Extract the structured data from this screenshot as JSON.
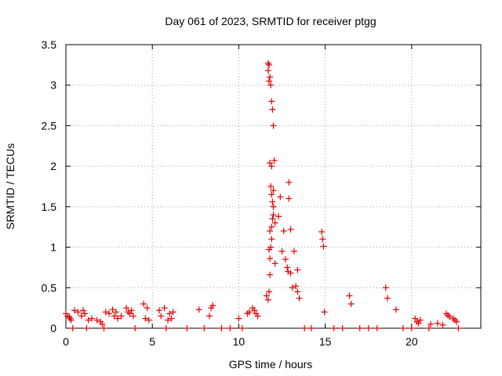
{
  "chart_data": {
    "type": "scatter",
    "title": "Day 061 of 2023, SRMTID for receiver ptgg",
    "xlabel": "GPS time / hours",
    "ylabel": "SRMTID / TECUs",
    "xlim": [
      0,
      24
    ],
    "ylim": [
      0,
      3.5
    ],
    "xticks": [
      0,
      5,
      10,
      15,
      20
    ],
    "xtick_labels": [
      "0",
      "5",
      "10",
      "15",
      "20"
    ],
    "yticks": [
      0,
      0.5,
      1,
      1.5,
      2,
      2.5,
      3,
      3.5
    ],
    "ytick_labels": [
      "0",
      "0.5",
      "1",
      "1.5",
      "2",
      "2.5",
      "3",
      "3.5"
    ],
    "grid": true,
    "marker": "plus",
    "color": "#e00000",
    "series": [
      {
        "name": "SRMTID",
        "x": [
          0.0,
          0.1,
          0.2,
          0.25,
          0.3,
          0.5,
          0.7,
          0.9,
          1.0,
          1.1,
          1.3,
          1.5,
          1.8,
          2.0,
          2.1,
          2.3,
          2.5,
          2.7,
          2.8,
          2.9,
          3.0,
          3.2,
          3.5,
          3.6,
          3.7,
          3.8,
          3.9,
          4.5,
          4.6,
          4.7,
          4.8,
          5.4,
          5.5,
          5.7,
          5.9,
          6.0,
          6.1,
          6.2,
          7.7,
          8.3,
          8.4,
          8.5,
          10.0,
          10.5,
          10.6,
          10.8,
          10.9,
          11.0,
          11.1,
          11.6,
          11.7,
          11.75,
          11.8,
          11.8,
          11.85,
          11.9,
          11.9,
          11.95,
          12.0,
          12.0,
          12.05,
          12.0,
          11.95,
          11.9,
          11.85,
          11.8,
          11.75,
          11.7,
          11.7,
          11.75,
          11.8,
          11.85,
          11.9,
          11.95,
          12.0,
          12.1,
          12.3,
          12.4,
          12.5,
          12.6,
          12.7,
          12.8,
          12.85,
          12.9,
          12.9,
          13.0,
          13.0,
          13.1,
          13.2,
          13.3,
          13.4,
          13.4,
          13.5,
          14.8,
          14.85,
          14.9,
          14.95,
          16.4,
          16.5,
          18.5,
          18.6,
          19.1,
          20.2,
          20.3,
          20.4,
          20.5,
          21.1,
          21.5,
          21.8,
          22.0,
          22.1,
          22.2,
          22.4,
          22.5,
          22.6,
          11.9,
          12.0,
          11.8,
          11.75,
          12.1,
          0.4,
          1.2,
          2.2,
          4.0,
          5.8,
          7.0,
          8.0,
          9.0,
          9.5,
          10.2,
          13.8,
          14.2,
          15.5,
          16.0,
          17.0,
          17.5,
          18.0,
          19.5,
          20.0,
          21.0,
          22.7
        ],
        "y": [
          0.18,
          0.15,
          0.14,
          0.12,
          0.1,
          0.22,
          0.2,
          0.15,
          0.22,
          0.18,
          0.1,
          0.12,
          0.1,
          0.08,
          0.05,
          0.2,
          0.18,
          0.23,
          0.15,
          0.2,
          0.12,
          0.15,
          0.25,
          0.2,
          0.18,
          0.22,
          0.15,
          0.3,
          0.12,
          0.25,
          0.1,
          0.22,
          0.15,
          0.25,
          0.1,
          0.18,
          0.12,
          0.2,
          0.23,
          0.15,
          0.25,
          0.28,
          0.12,
          0.18,
          0.2,
          0.25,
          0.22,
          0.18,
          0.15,
          0.4,
          0.35,
          0.45,
          0.66,
          0.86,
          1.0,
          1.1,
          1.25,
          1.35,
          1.5,
          1.7,
          2.07,
          2.5,
          2.7,
          2.8,
          3.0,
          3.1,
          3.25,
          3.27,
          3.18,
          3.05,
          2.04,
          1.75,
          1.65,
          1.56,
          1.4,
          1.3,
          1.38,
          1.62,
          0.95,
          1.2,
          0.85,
          0.75,
          0.7,
          1.8,
          1.6,
          1.22,
          0.68,
          0.5,
          0.95,
          0.52,
          0.72,
          0.45,
          0.37,
          1.19,
          1.1,
          1.01,
          0.2,
          0.4,
          0.3,
          0.5,
          0.37,
          0.23,
          0.12,
          0.08,
          0.06,
          0.1,
          0.05,
          0.06,
          0.04,
          0.18,
          0.16,
          0.14,
          0.12,
          0.1,
          0.08,
          2.0,
          1.5,
          1.2,
          0.97,
          0.8,
          0.0,
          0.0,
          0.0,
          0.0,
          0.0,
          0.0,
          0.0,
          0.0,
          0.0,
          0.0,
          0.0,
          0.0,
          0.0,
          0.0,
          0.0,
          0.0,
          0.0,
          0.0,
          0.0,
          0.0,
          0.0
        ]
      }
    ]
  }
}
